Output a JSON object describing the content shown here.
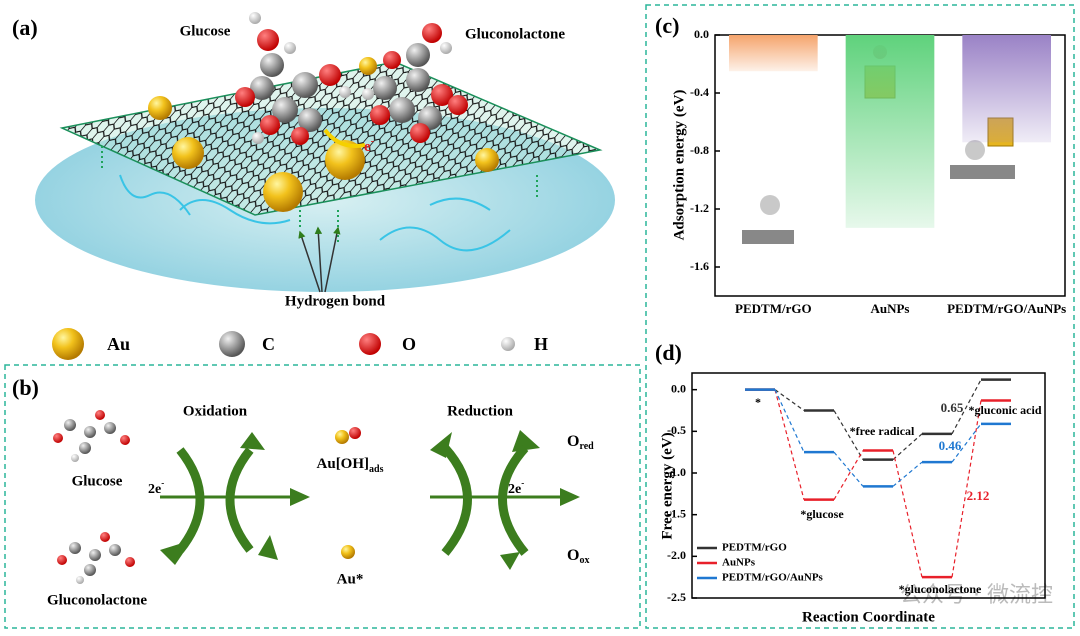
{
  "panel_a": {
    "label": "(a)",
    "glucose": "Glucose",
    "gluconolactone": "Gluconolactone",
    "electron": {
      "main": "e",
      "sup": "-"
    },
    "hydrogen_bond": "Hydrogen bond",
    "legend": [
      "Au",
      "C",
      "O",
      "H"
    ]
  },
  "panel_b": {
    "label": "(b)",
    "glucose": "Glucose",
    "gluconolactone": "Gluconolactone",
    "oxidation": "Oxidation",
    "reduction": "Reduction",
    "electrons_left": {
      "main": "2e",
      "sup": "-"
    },
    "electrons_right": {
      "main": "2e",
      "sup": "-"
    },
    "au_oh": {
      "main": "Au[OH]",
      "sub": "ads"
    },
    "au_star": "Au*",
    "o_red": {
      "main": "O",
      "sub": "red"
    },
    "o_ox": {
      "main": "O",
      "sub": "ox"
    }
  },
  "panel_c_label": "(c)",
  "panel_d_label": "(d)",
  "watermark": "公众号 · 微流控",
  "chart_data": [
    {
      "type": "bar",
      "ylabel": "Adsorption energy (eV)",
      "categories": [
        "PEDTM/rGO",
        "AuNPs",
        "PEDTM/rGO/AuNPs"
      ],
      "values": [
        -0.25,
        -1.33,
        -0.74
      ],
      "colors": [
        "#f5a46c",
        "#5fd27c",
        "#9a82c6"
      ],
      "ylim": [
        0,
        -1.8
      ],
      "yticks": [
        {
          "value": 0,
          "label": "0.0"
        },
        -0.4,
        -0.8,
        -1.2,
        -1.6
      ]
    },
    {
      "type": "energy-levels",
      "xlabel": "Reaction Coordinate",
      "ylabel": "Free energy (eV)",
      "categories": [
        "*",
        "*glucose",
        "*free radical",
        "*gluconolactone",
        "*gluconic acid"
      ],
      "series": [
        {
          "name": "PEDTM/rGO",
          "color": "#333333",
          "values": [
            0,
            -0.25,
            -0.84,
            -0.53,
            0.12
          ]
        },
        {
          "name": "AuNPs",
          "color": "#e8202a",
          "values": [
            0,
            -1.32,
            -0.73,
            -2.25,
            -0.13
          ]
        },
        {
          "name": "PEDTM/rGO/AuNPs",
          "color": "#1f78d1",
          "values": [
            0,
            -0.75,
            -1.16,
            -0.87,
            -0.41
          ]
        }
      ],
      "annotations": [
        {
          "text": "0.65",
          "color": "#333333"
        },
        {
          "text": "0.46",
          "color": "#1f78d1"
        },
        {
          "text": "2.12",
          "color": "#e8202a"
        }
      ],
      "ylim": [
        0.2,
        -2.5
      ],
      "yticks": [
        {
          "value": 0,
          "label": "0.0"
        },
        -0.5,
        {
          "value": -1,
          "label": "-1.0"
        },
        -1.5,
        {
          "value": -2,
          "label": "-2.0"
        },
        -2.5
      ],
      "legend": "lower left"
    }
  ]
}
